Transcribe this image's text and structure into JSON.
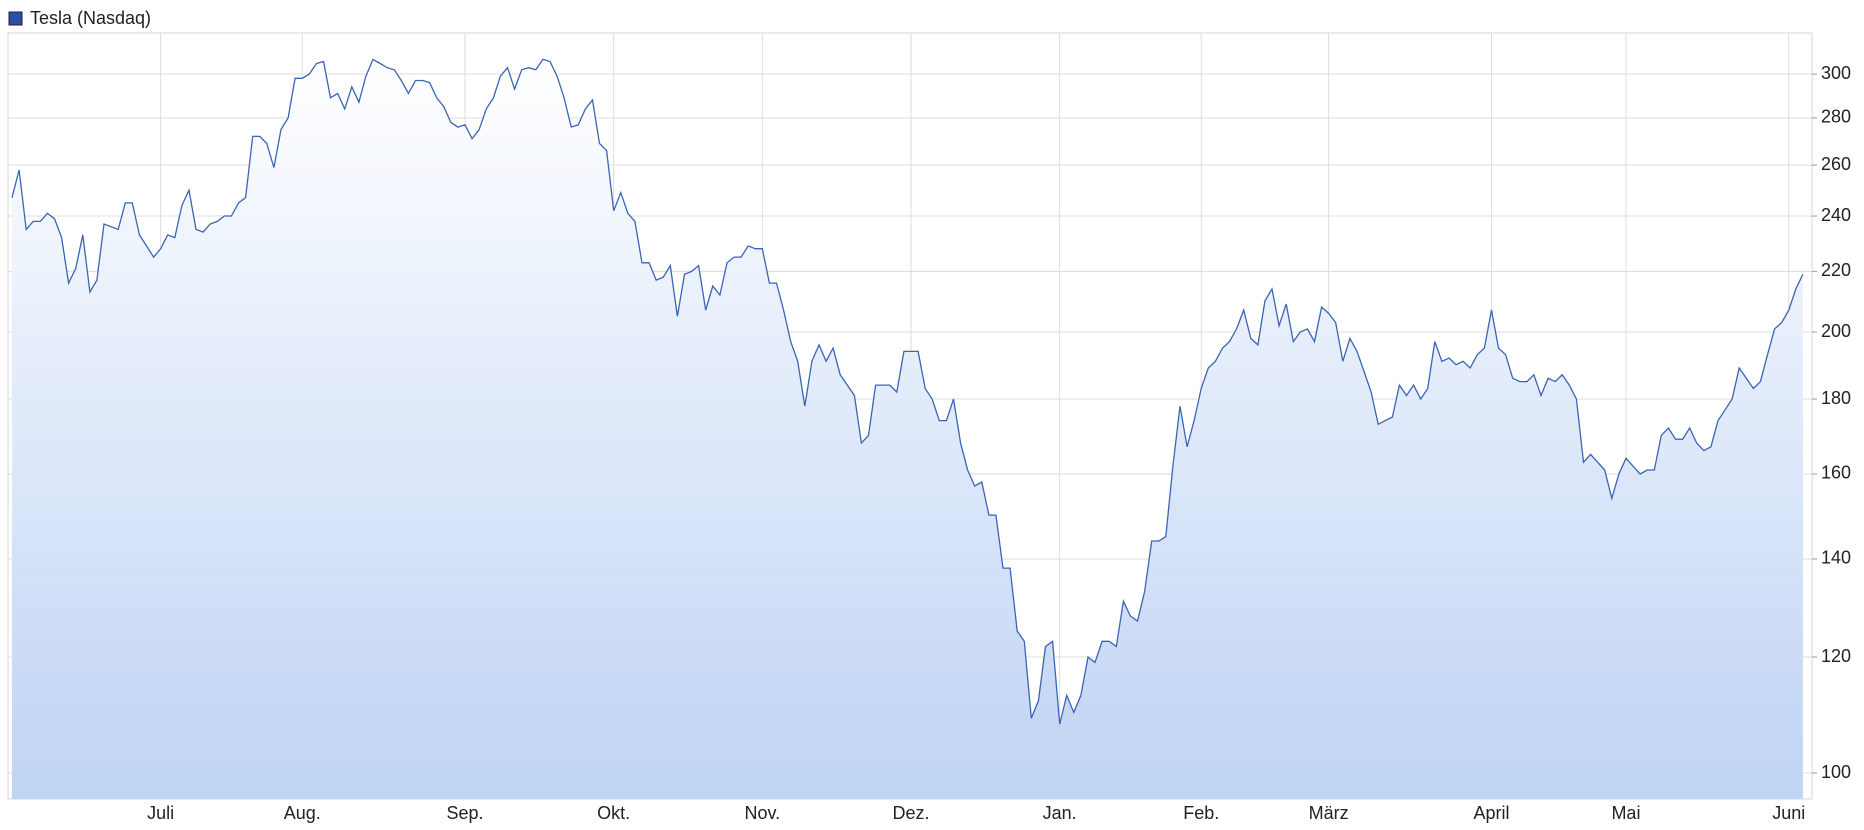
{
  "chart_data": {
    "type": "area",
    "log_scale": true,
    "grid": true,
    "legend": "top-left",
    "series": [
      {
        "name": "Tesla (Nasdaq)",
        "color": "#3a64b4",
        "legend_color": "#2a4fa8",
        "values": [
          247,
          258,
          235,
          238,
          238,
          241,
          239,
          232,
          216,
          221,
          233,
          213,
          217,
          237,
          236,
          235,
          245,
          245,
          233,
          229,
          225,
          228,
          233,
          232,
          244,
          250,
          235,
          234,
          237,
          238,
          240,
          240,
          245,
          247,
          272,
          272,
          269,
          259,
          275,
          280,
          298,
          298,
          300,
          305,
          306,
          289,
          291,
          284,
          294,
          287,
          299,
          307,
          305,
          303,
          302,
          297,
          291,
          297,
          297,
          296,
          289,
          285,
          278,
          276,
          277,
          271,
          275,
          284,
          289,
          299,
          303,
          293,
          302,
          303,
          302,
          307,
          306,
          299,
          289,
          276,
          277,
          284,
          288,
          269,
          266,
          242,
          249,
          241,
          238,
          223,
          223,
          217,
          218,
          222,
          205,
          219,
          220,
          222,
          207,
          215,
          212,
          223,
          225,
          225,
          229,
          228,
          228,
          216,
          216,
          207,
          197,
          191,
          178,
          191,
          196,
          191,
          195,
          187,
          184,
          181,
          168,
          170,
          184,
          184,
          184,
          182,
          194,
          194,
          194,
          183,
          180,
          174,
          174,
          180,
          168,
          161,
          157,
          158,
          150,
          150,
          138,
          138,
          125,
          123,
          109,
          112,
          122,
          123,
          108,
          113,
          110,
          113,
          120,
          119,
          123,
          123,
          122,
          131,
          128,
          127,
          133,
          144,
          144,
          145,
          162,
          178,
          167,
          174,
          183,
          189,
          191,
          195,
          197,
          201,
          207,
          198,
          196,
          210,
          214,
          202,
          209,
          197,
          200,
          201,
          197,
          208,
          206,
          203,
          191,
          198,
          194,
          188,
          182,
          173,
          174,
          175,
          184,
          181,
          184,
          180,
          183,
          197,
          191,
          192,
          190,
          191,
          189,
          193,
          195,
          207,
          195,
          193,
          186,
          185,
          185,
          187,
          181,
          186,
          185,
          187,
          184,
          180,
          163,
          165,
          163,
          161,
          154,
          160,
          164,
          162,
          160,
          161,
          161,
          170,
          172,
          169,
          169,
          172,
          168,
          166,
          167,
          174,
          177,
          180,
          189,
          186,
          183,
          185,
          193,
          201,
          203,
          207,
          214,
          219
        ]
      }
    ],
    "xlim": [
      0,
      254
    ],
    "xticks": [
      {
        "value": 21,
        "label": "Juli"
      },
      {
        "value": 41,
        "label": "Aug."
      },
      {
        "value": 64,
        "label": "Sep."
      },
      {
        "value": 85,
        "label": "Okt."
      },
      {
        "value": 106,
        "label": "Nov."
      },
      {
        "value": 127,
        "label": "Dez."
      },
      {
        "value": 148,
        "label": "Jan."
      },
      {
        "value": 168,
        "label": "Feb."
      },
      {
        "value": 186,
        "label": "März"
      },
      {
        "value": 209,
        "label": "April"
      },
      {
        "value": 228,
        "label": "Mai"
      },
      {
        "value": 251,
        "label": "Juni"
      }
    ],
    "ylim": [
      96,
      320
    ],
    "yticks": [
      100,
      120,
      140,
      160,
      180,
      200,
      220,
      240,
      260,
      280,
      300
    ]
  }
}
